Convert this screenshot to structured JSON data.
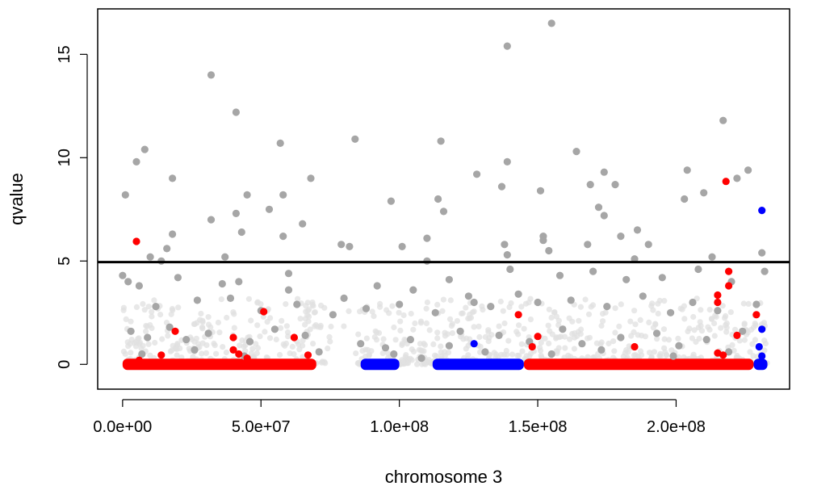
{
  "chart_data": {
    "type": "scatter",
    "xlabel": "chromosome 3",
    "ylabel": "qvalue",
    "xlim": [
      -9000000,
      241000000
    ],
    "ylim": [
      -1.2,
      17.2
    ],
    "x_ticks": [
      0,
      50000000,
      100000000,
      150000000,
      200000000
    ],
    "x_tick_labels": [
      "0.0e+00",
      "5.0e+07",
      "1.0e+08",
      "1.5e+08",
      "2.0e+08"
    ],
    "y_ticks": [
      0,
      5,
      10,
      15
    ],
    "y_tick_labels": [
      "0",
      "5",
      "10",
      "15"
    ],
    "threshold_line": {
      "y": 4.95,
      "color": "#000000"
    },
    "grid": false,
    "colors": {
      "background_points": "#e0e0e0",
      "points": "#a6a6a6",
      "highlight_red": "#ff0000",
      "highlight_blue": "#0000ff",
      "axis": "#000000"
    },
    "baseline_bands": [
      {
        "color": "#ff0000",
        "x_start": 0,
        "x_end": 70000000
      },
      {
        "color": "#0000ff",
        "x_start": 86000000,
        "x_end": 100000000
      },
      {
        "color": "#0000ff",
        "x_start": 112000000,
        "x_end": 145000000
      },
      {
        "color": "#ff0000",
        "x_start": 145000000,
        "x_end": 228000000
      },
      {
        "color": "#0000ff",
        "x_start": 228000000,
        "x_end": 233000000
      }
    ],
    "series": [
      {
        "color": "#a6a6a6",
        "points": [
          [
            155000000,
            16.5
          ],
          [
            139000000,
            15.4
          ],
          [
            32000000,
            14.0
          ],
          [
            41000000,
            12.2
          ],
          [
            217000000,
            11.8
          ],
          [
            84000000,
            10.9
          ],
          [
            115000000,
            10.8
          ],
          [
            57000000,
            10.7
          ],
          [
            8000000,
            10.4
          ],
          [
            164000000,
            10.3
          ],
          [
            5000000,
            9.8
          ],
          [
            139000000,
            9.8
          ],
          [
            174000000,
            9.3
          ],
          [
            128000000,
            9.2
          ],
          [
            226000000,
            9.4
          ],
          [
            204000000,
            9.4
          ],
          [
            222000000,
            9.0
          ],
          [
            18000000,
            9.0
          ],
          [
            68000000,
            9.0
          ],
          [
            169000000,
            8.7
          ],
          [
            178000000,
            8.7
          ],
          [
            137000000,
            8.6
          ],
          [
            151000000,
            8.4
          ],
          [
            210000000,
            8.3
          ],
          [
            1000000,
            8.2
          ],
          [
            45000000,
            8.2
          ],
          [
            58000000,
            8.2
          ],
          [
            203000000,
            8.0
          ],
          [
            114000000,
            8.0
          ],
          [
            97000000,
            7.9
          ],
          [
            172000000,
            7.6
          ],
          [
            174000000,
            7.2
          ],
          [
            41000000,
            7.3
          ],
          [
            53000000,
            7.5
          ],
          [
            116000000,
            7.4
          ],
          [
            32000000,
            7.0
          ],
          [
            65000000,
            6.8
          ],
          [
            186000000,
            6.5
          ],
          [
            43000000,
            6.4
          ],
          [
            180000000,
            6.2
          ],
          [
            18000000,
            6.3
          ],
          [
            58000000,
            6.2
          ],
          [
            110000000,
            6.1
          ],
          [
            152000000,
            6.2
          ],
          [
            152000000,
            6.0
          ],
          [
            82000000,
            5.7
          ],
          [
            79000000,
            5.8
          ],
          [
            101000000,
            5.7
          ],
          [
            168000000,
            5.8
          ],
          [
            138000000,
            5.8
          ],
          [
            190000000,
            5.8
          ],
          [
            16000000,
            5.6
          ],
          [
            154000000,
            5.5
          ],
          [
            10000000,
            5.2
          ],
          [
            139000000,
            5.3
          ],
          [
            185000000,
            5.1
          ],
          [
            231000000,
            5.4
          ],
          [
            213000000,
            5.2
          ],
          [
            37000000,
            5.2
          ],
          [
            14000000,
            5.0
          ],
          [
            110000000,
            5.0
          ],
          [
            0,
            4.3
          ],
          [
            6000000,
            3.8
          ],
          [
            20000000,
            4.2
          ],
          [
            36000000,
            3.9
          ],
          [
            42000000,
            4.0
          ],
          [
            60000000,
            4.4
          ],
          [
            80000000,
            3.2
          ],
          [
            92000000,
            3.8
          ],
          [
            105000000,
            3.6
          ],
          [
            118000000,
            4.1
          ],
          [
            125000000,
            3.3
          ],
          [
            140000000,
            4.6
          ],
          [
            158000000,
            4.3
          ],
          [
            170000000,
            4.5
          ],
          [
            182000000,
            4.1
          ],
          [
            195000000,
            4.2
          ],
          [
            208000000,
            4.6
          ],
          [
            220000000,
            4.0
          ],
          [
            232000000,
            4.5
          ],
          [
            12000000,
            2.8
          ],
          [
            27000000,
            3.1
          ],
          [
            39000000,
            3.2
          ],
          [
            50000000,
            2.6
          ],
          [
            63000000,
            2.9
          ],
          [
            76000000,
            2.4
          ],
          [
            88000000,
            2.7
          ],
          [
            100000000,
            2.9
          ],
          [
            113000000,
            2.5
          ],
          [
            127000000,
            3.0
          ],
          [
            133000000,
            2.8
          ],
          [
            143000000,
            3.4
          ],
          [
            150000000,
            3.0
          ],
          [
            162000000,
            3.1
          ],
          [
            175000000,
            2.8
          ],
          [
            188000000,
            3.3
          ],
          [
            198000000,
            2.5
          ],
          [
            206000000,
            3.0
          ],
          [
            215000000,
            2.6
          ],
          [
            229000000,
            2.9
          ],
          [
            3000000,
            1.6
          ],
          [
            9000000,
            1.3
          ],
          [
            17000000,
            1.8
          ],
          [
            23000000,
            1.2
          ],
          [
            31000000,
            1.5
          ],
          [
            46000000,
            1.1
          ],
          [
            55000000,
            1.7
          ],
          [
            66000000,
            1.4
          ],
          [
            86000000,
            1.0
          ],
          [
            95000000,
            0.8
          ],
          [
            104000000,
            1.2
          ],
          [
            118000000,
            0.9
          ],
          [
            122000000,
            1.6
          ],
          [
            136000000,
            1.4
          ],
          [
            147000000,
            1.1
          ],
          [
            159000000,
            1.7
          ],
          [
            166000000,
            1.0
          ],
          [
            180000000,
            1.3
          ],
          [
            193000000,
            1.5
          ],
          [
            201000000,
            0.9
          ],
          [
            211000000,
            1.2
          ],
          [
            224000000,
            1.6
          ],
          [
            7000000,
            0.5
          ],
          [
            26000000,
            0.7
          ],
          [
            44000000,
            0.4
          ],
          [
            71000000,
            0.6
          ],
          [
            98000000,
            0.5
          ],
          [
            108000000,
            0.3
          ],
          [
            131000000,
            0.6
          ],
          [
            155000000,
            0.5
          ],
          [
            173000000,
            0.7
          ],
          [
            199000000,
            0.4
          ],
          [
            219000000,
            0.6
          ],
          [
            60000000,
            3.6
          ],
          [
            2000000,
            4.0
          ]
        ]
      },
      {
        "color": "#ff0000",
        "points": [
          [
            5000000,
            5.95
          ],
          [
            218000000,
            8.85
          ],
          [
            51000000,
            2.55
          ],
          [
            19000000,
            1.6
          ],
          [
            40000000,
            1.3
          ],
          [
            62000000,
            1.3
          ],
          [
            40000000,
            0.7
          ],
          [
            42000000,
            0.5
          ],
          [
            45000000,
            0.3
          ],
          [
            67000000,
            0.45
          ],
          [
            14000000,
            0.45
          ],
          [
            6000000,
            0.2
          ],
          [
            143000000,
            2.4
          ],
          [
            148000000,
            0.85
          ],
          [
            150000000,
            1.35
          ],
          [
            185000000,
            0.85
          ],
          [
            215000000,
            3.35
          ],
          [
            215000000,
            3.0
          ],
          [
            219000000,
            4.5
          ],
          [
            219000000,
            3.8
          ],
          [
            222000000,
            1.4
          ],
          [
            215000000,
            0.55
          ],
          [
            217000000,
            0.45
          ],
          [
            229000000,
            2.4
          ]
        ]
      },
      {
        "color": "#0000ff",
        "points": [
          [
            231000000,
            7.45
          ],
          [
            231000000,
            1.7
          ],
          [
            127000000,
            1.0
          ],
          [
            230000000,
            0.85
          ],
          [
            231000000,
            0.4
          ]
        ]
      }
    ]
  }
}
